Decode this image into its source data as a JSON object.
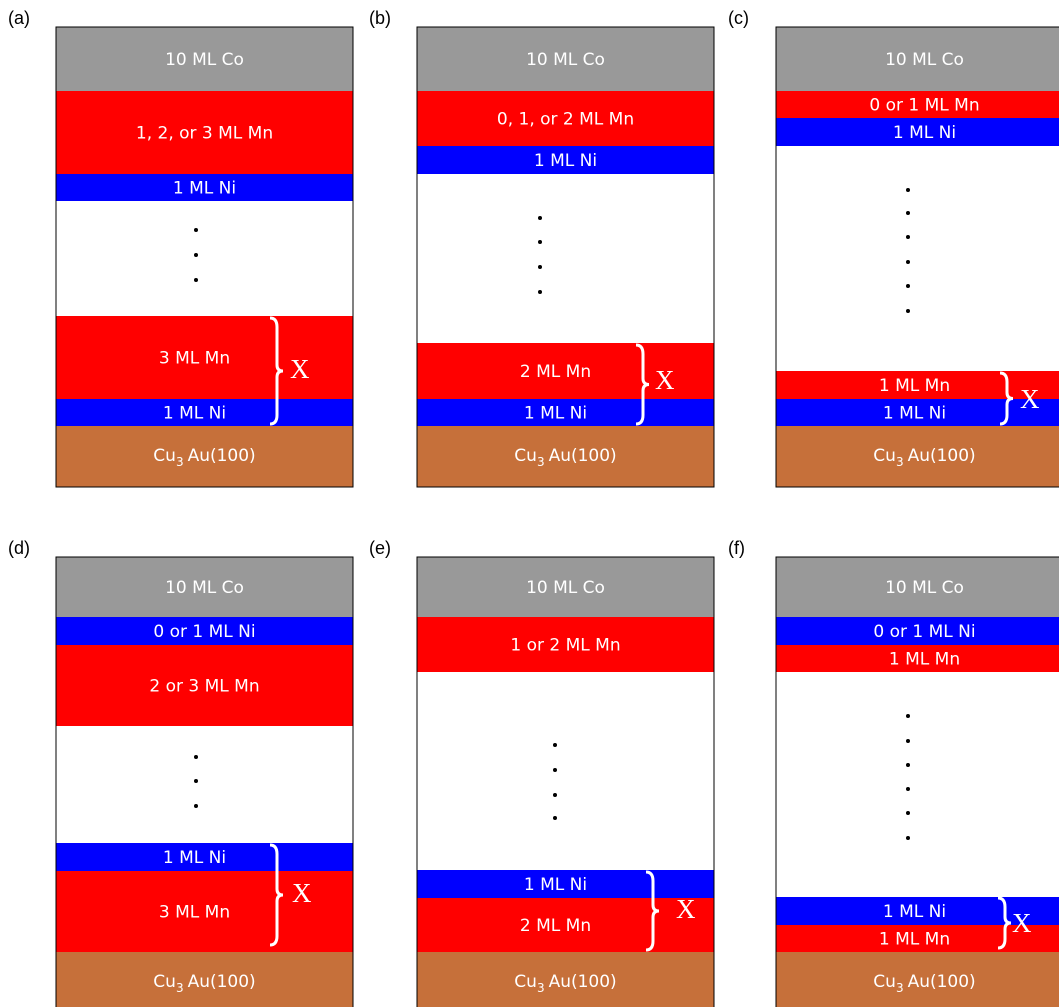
{
  "panels": [
    {
      "label": "(a)",
      "layers": [
        {
          "text": "10 ML Co"
        },
        {
          "text": "1, 2, or 3 ML Mn"
        },
        {
          "text": "1 ML Ni"
        },
        {
          "text": "3 ML Mn"
        },
        {
          "text": "1 ML Ni"
        }
      ],
      "substrate": {
        "element": "Cu",
        "subscript": "3",
        "rest": "Au(100)"
      },
      "bracket": "X"
    },
    {
      "label": "(b)",
      "layers": [
        {
          "text": "10 ML Co"
        },
        {
          "text": "0, 1, or 2 ML Mn"
        },
        {
          "text": "1 ML Ni"
        },
        {
          "text": "2 ML Mn"
        },
        {
          "text": "1 ML Ni"
        }
      ],
      "substrate": {
        "element": "Cu",
        "subscript": "3",
        "rest": "Au(100)"
      },
      "bracket": "X"
    },
    {
      "label": "(c)",
      "layers": [
        {
          "text": "10 ML Co"
        },
        {
          "text": "0 or 1 ML Mn"
        },
        {
          "text": "1 ML Ni"
        },
        {
          "text": "1 ML Mn"
        },
        {
          "text": "1 ML Ni"
        }
      ],
      "substrate": {
        "element": "Cu",
        "subscript": "3",
        "rest": "Au(100)"
      },
      "bracket": "X"
    },
    {
      "label": "(d)",
      "layers": [
        {
          "text": "10 ML Co"
        },
        {
          "text": "0 or 1 ML Ni"
        },
        {
          "text": "2 or 3 ML Mn"
        },
        {
          "text": "1 ML Ni"
        },
        {
          "text": "3 ML Mn"
        }
      ],
      "substrate": {
        "element": "Cu",
        "subscript": "3",
        "rest": "Au(100)"
      },
      "bracket": "X"
    },
    {
      "label": "(e)",
      "layers": [
        {
          "text": "10 ML Co"
        },
        {
          "text": "1 or 2 ML Mn"
        },
        {
          "text": "1 ML Ni"
        },
        {
          "text": "2 ML Mn"
        }
      ],
      "substrate": {
        "element": "Cu",
        "subscript": "3",
        "rest": "Au(100)"
      },
      "bracket": "X"
    },
    {
      "label": "(f)",
      "layers": [
        {
          "text": "10 ML Co"
        },
        {
          "text": "0 or 1 ML Ni"
        },
        {
          "text": "1 ML Mn"
        },
        {
          "text": "1 ML Ni"
        },
        {
          "text": "1 ML Mn"
        }
      ],
      "substrate": {
        "element": "Cu",
        "subscript": "3",
        "rest": "Au(100)"
      },
      "bracket": "X"
    }
  ]
}
